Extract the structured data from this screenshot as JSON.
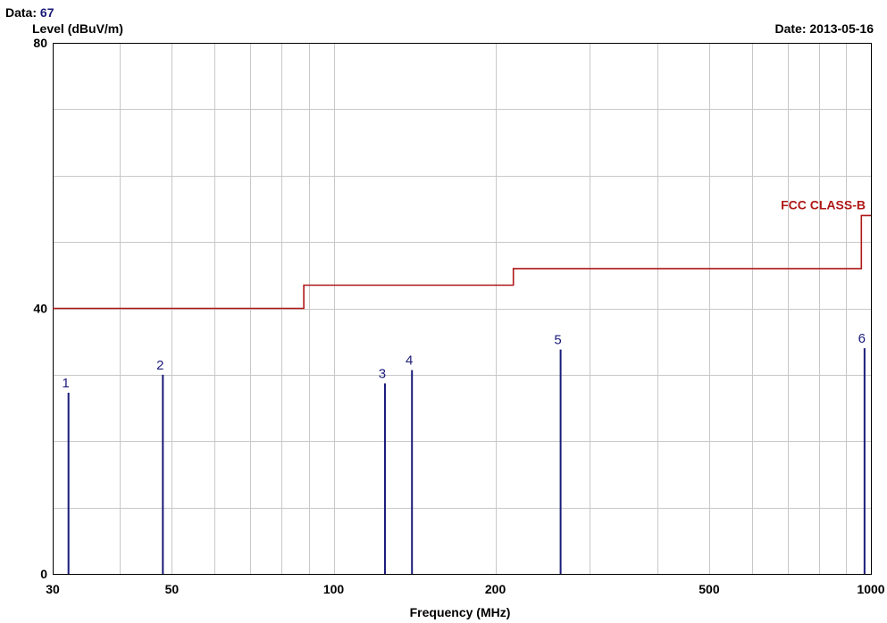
{
  "header": {
    "data_label": "Data:",
    "data_value": "67",
    "date_label": "Date:",
    "date_value": "2013-05-16"
  },
  "chart_data": {
    "type": "line",
    "xlabel": "Frequency (MHz)",
    "ylabel": "Level (dBuV/m)",
    "x_scale": "log",
    "xlim": [
      30,
      1000
    ],
    "ylim": [
      0,
      80
    ],
    "x_ticks": [
      30,
      50,
      100,
      200,
      500,
      1000
    ],
    "y_ticks": [
      0,
      40,
      80
    ],
    "grid": true,
    "limit_line": {
      "name": "FCC CLASS-B",
      "color": "#b01717",
      "segments": [
        {
          "x_from": 30,
          "x_to": 88,
          "level": 40
        },
        {
          "x_from": 88,
          "x_to": 216,
          "level": 43.5
        },
        {
          "x_from": 216,
          "x_to": 960,
          "level": 46
        },
        {
          "x_from": 960,
          "x_to": 1000,
          "level": 54
        }
      ]
    },
    "markers": {
      "color": "#1a1a7a",
      "points": [
        {
          "label": "1",
          "freq": 32.1,
          "level": 27.3
        },
        {
          "label": "2",
          "freq": 48.1,
          "level": 30.0
        },
        {
          "label": "3",
          "freq": 124.6,
          "level": 28.7
        },
        {
          "label": "4",
          "freq": 139.9,
          "level": 30.7
        },
        {
          "label": "5",
          "freq": 264.5,
          "level": 33.8
        },
        {
          "label": "6",
          "freq": 973.0,
          "level": 34.0
        }
      ]
    }
  }
}
